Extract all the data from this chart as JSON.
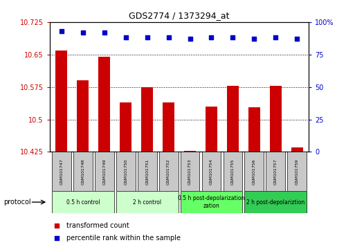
{
  "title": "GDS2774 / 1373294_at",
  "samples": [
    "GSM101747",
    "GSM101748",
    "GSM101749",
    "GSM101750",
    "GSM101751",
    "GSM101752",
    "GSM101753",
    "GSM101754",
    "GSM101755",
    "GSM101756",
    "GSM101757",
    "GSM101759"
  ],
  "transformed_count": [
    10.66,
    10.59,
    10.645,
    10.54,
    10.575,
    10.54,
    10.428,
    10.53,
    10.578,
    10.528,
    10.578,
    10.435
  ],
  "percentile_rank": [
    93,
    92,
    92,
    88,
    88,
    88,
    87,
    88,
    88,
    87,
    88,
    87
  ],
  "ylim_left": [
    10.425,
    10.725
  ],
  "ylim_right": [
    0,
    100
  ],
  "yticks_left": [
    10.425,
    10.5,
    10.575,
    10.65,
    10.725
  ],
  "yticks_right": [
    0,
    25,
    50,
    75,
    100
  ],
  "ytick_labels_left": [
    "10.425",
    "10.5",
    "10.575",
    "10.65",
    "10.725"
  ],
  "ytick_labels_right": [
    "0",
    "25",
    "50",
    "75",
    "100%"
  ],
  "bar_color": "#cc0000",
  "dot_color": "#0000cc",
  "bar_bottom": 10.425,
  "group_defs": [
    {
      "label": "0.5 h control",
      "start": 0,
      "end": 2,
      "color": "#ccffcc"
    },
    {
      "label": "2 h control",
      "start": 3,
      "end": 5,
      "color": "#ccffcc"
    },
    {
      "label": "0.5 h post-depolarization\nzation",
      "start": 6,
      "end": 8,
      "color": "#66ff66"
    },
    {
      "label": "2 h post-depolariztion",
      "start": 9,
      "end": 11,
      "color": "#33cc55"
    }
  ],
  "protocol_label": "protocol",
  "legend_bar_label": "transformed count",
  "legend_dot_label": "percentile rank within the sample",
  "background_color": "#ffffff",
  "tick_label_color_left": "#cc0000",
  "tick_label_color_right": "#0000cc",
  "sample_box_color": "#c8c8c8"
}
